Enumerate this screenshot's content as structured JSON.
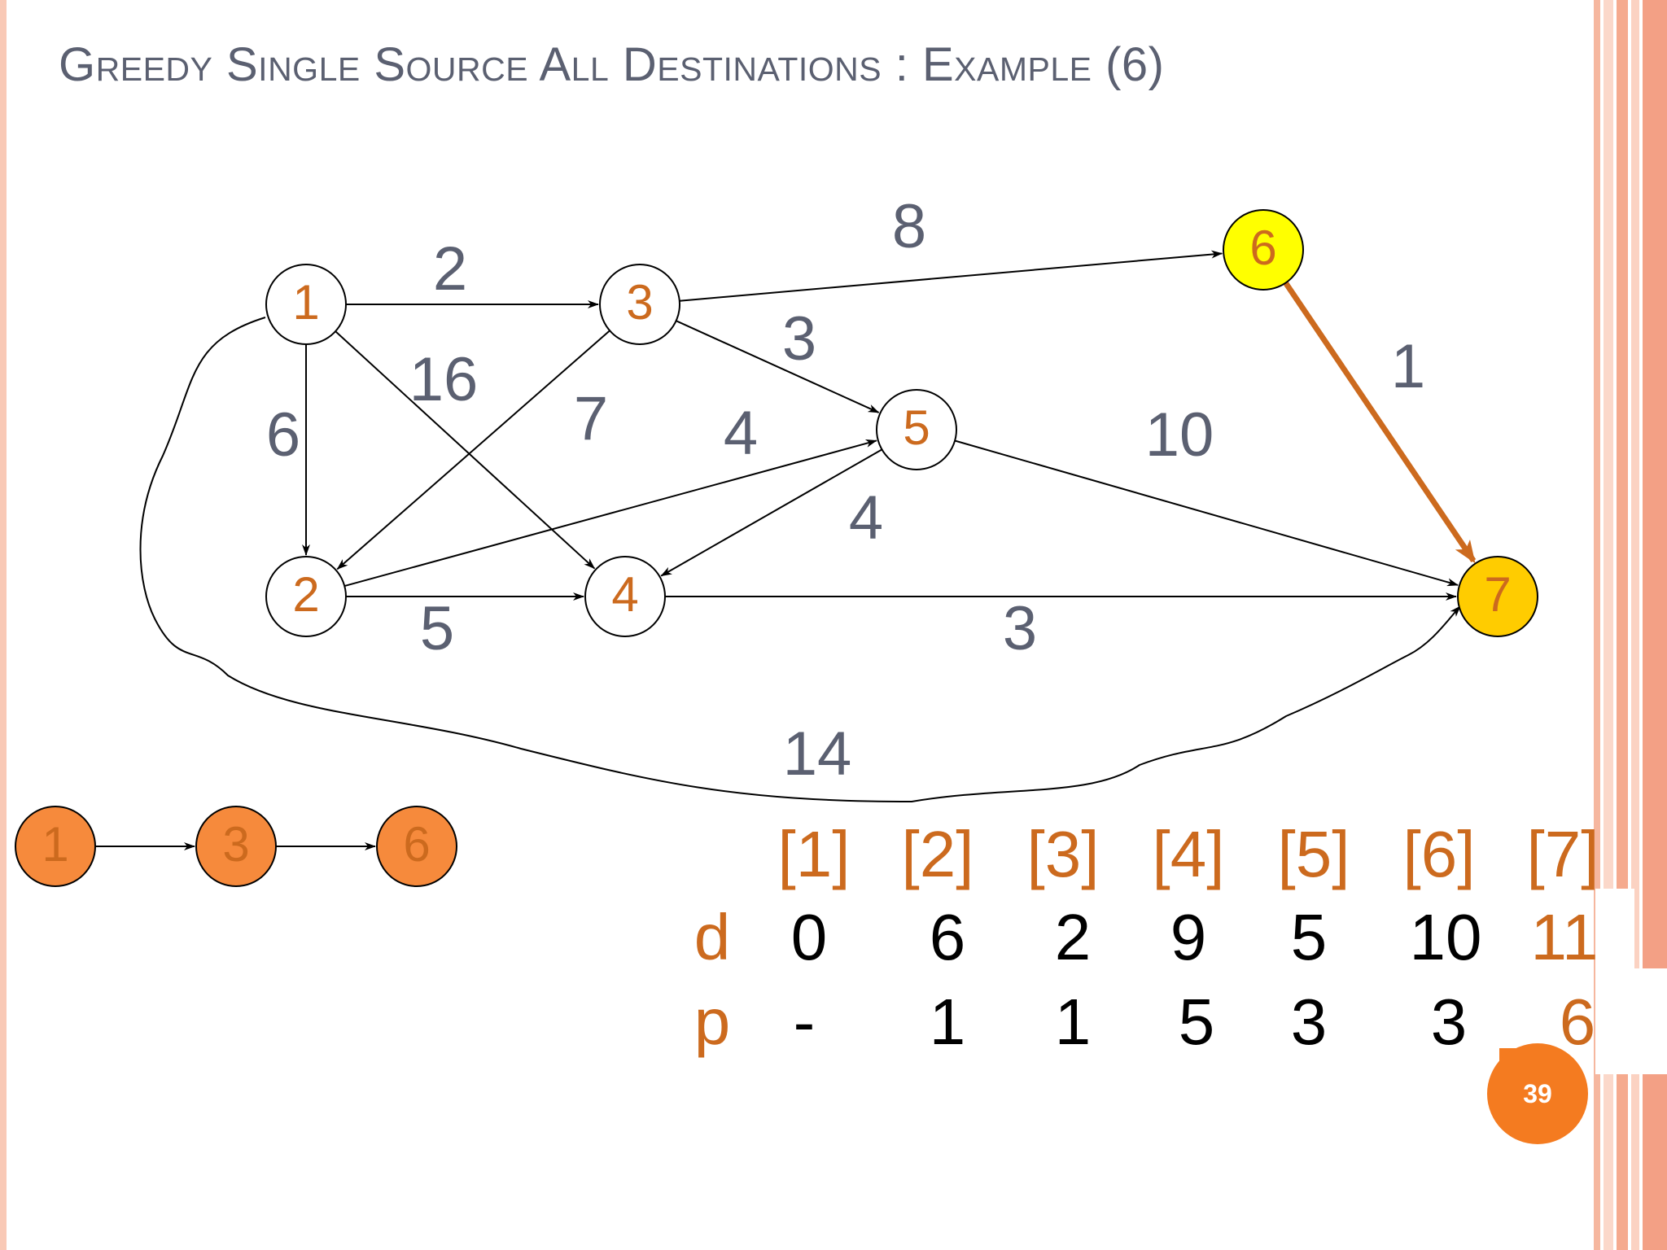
{
  "title": "Greedy Single Source All Destinations : Example (6)",
  "colors": {
    "accent_orange": "#cc6a1e",
    "title_gray": "#5b6071",
    "node_fill_highlight_yellow": "#ffff00",
    "node_fill_highlight_gold": "#ffcc00",
    "path_node_fill": "#f68a3c",
    "badge_orange": "#f47b20"
  },
  "graph": {
    "nodes": [
      {
        "id": "1",
        "label": "1",
        "state": "normal"
      },
      {
        "id": "2",
        "label": "2",
        "state": "normal"
      },
      {
        "id": "3",
        "label": "3",
        "state": "normal"
      },
      {
        "id": "4",
        "label": "4",
        "state": "normal"
      },
      {
        "id": "5",
        "label": "5",
        "state": "normal"
      },
      {
        "id": "6",
        "label": "6",
        "state": "highlight-yellow"
      },
      {
        "id": "7",
        "label": "7",
        "state": "highlight-gold"
      }
    ],
    "edges": [
      {
        "from": "1",
        "to": "3",
        "weight": "2"
      },
      {
        "from": "1",
        "to": "2",
        "weight": "6"
      },
      {
        "from": "1",
        "to": "4",
        "weight": "16"
      },
      {
        "from": "1",
        "to": "7",
        "weight": "14"
      },
      {
        "from": "3",
        "to": "6",
        "weight": "8"
      },
      {
        "from": "3",
        "to": "5",
        "weight": "3"
      },
      {
        "from": "3",
        "to": "2",
        "weight": "7"
      },
      {
        "from": "2",
        "to": "5",
        "weight": "4"
      },
      {
        "from": "2",
        "to": "4",
        "weight": "5"
      },
      {
        "from": "5",
        "to": "4",
        "weight": "4"
      },
      {
        "from": "5",
        "to": "7",
        "weight": "10"
      },
      {
        "from": "4",
        "to": "7",
        "weight": "3"
      },
      {
        "from": "6",
        "to": "7",
        "weight": "1",
        "highlighted": true
      }
    ]
  },
  "path": {
    "nodes": [
      "1",
      "3",
      "6"
    ]
  },
  "table": {
    "columns": [
      "[1]",
      "[2]",
      "[3]",
      "[4]",
      "[5]",
      "[6]",
      "[7]"
    ],
    "rows": [
      {
        "label": "d",
        "values": [
          "0",
          "6",
          "2",
          "9",
          "5",
          "10",
          "11"
        ],
        "highlight_index": 6
      },
      {
        "label": "p",
        "values": [
          "-",
          "1",
          "1",
          "5",
          "3",
          "3",
          "6"
        ],
        "highlight_index": 6
      }
    ]
  },
  "page_number": "39"
}
